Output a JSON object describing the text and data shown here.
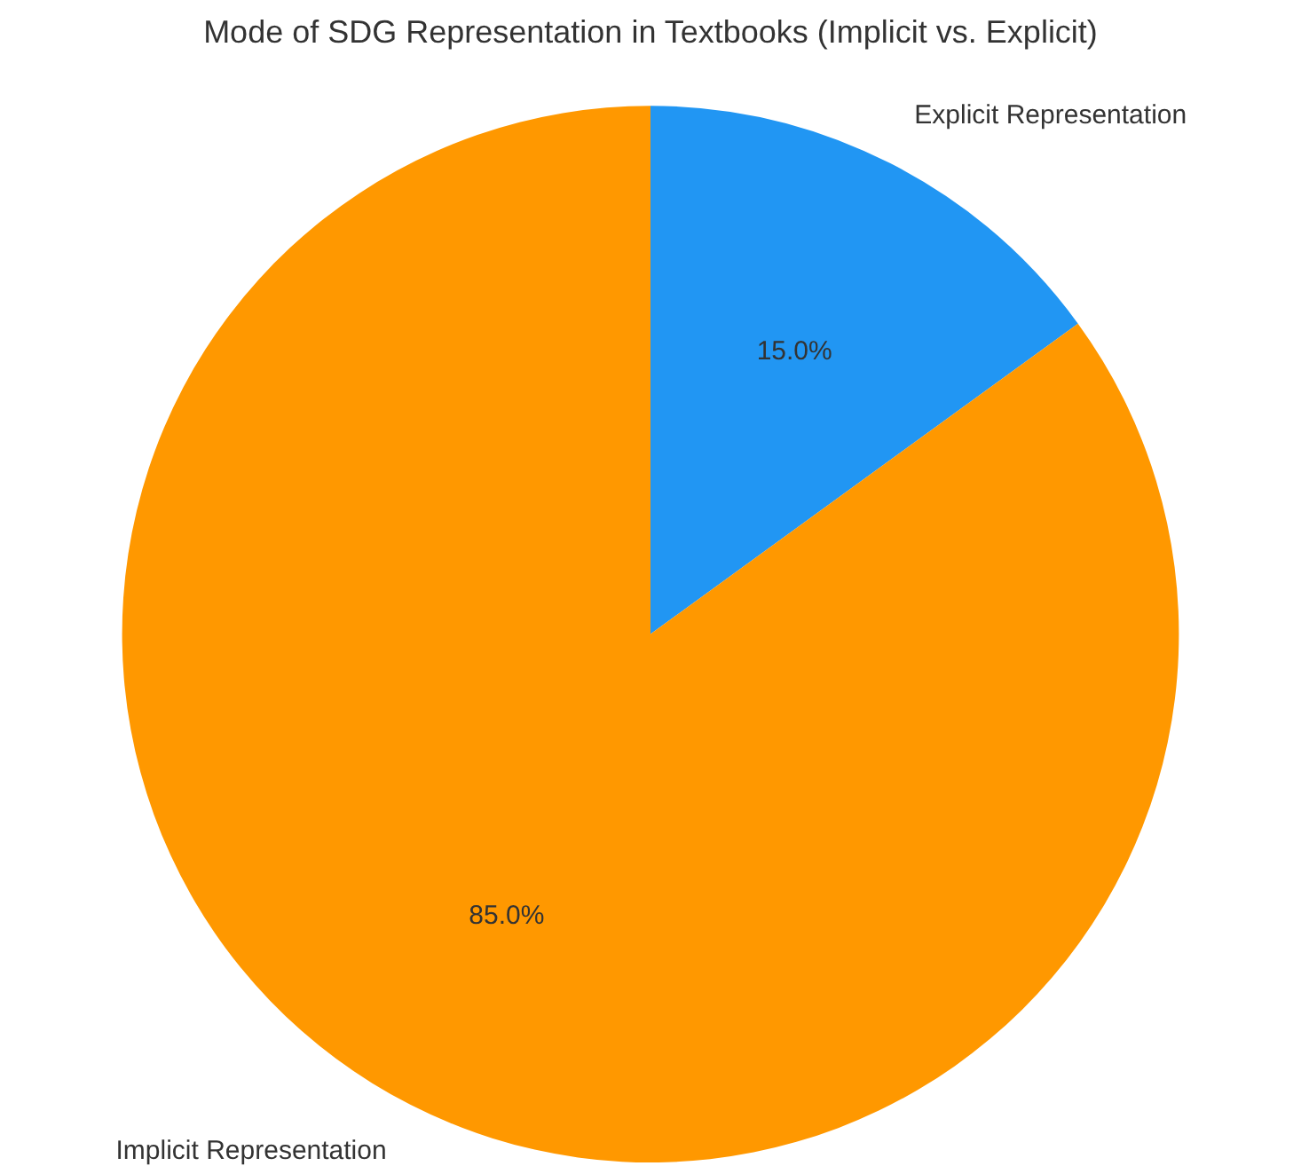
{
  "chart_data": {
    "type": "pie",
    "title": "Mode of SDG Representation in Textbooks (Implicit vs. Explicit)",
    "categories": [
      "Explicit Representation",
      "Implicit Representation"
    ],
    "values": [
      15,
      85
    ],
    "colors": [
      "#2196f3",
      "#ff9800"
    ],
    "value_labels": [
      "15.0%",
      "85.0%"
    ],
    "legend": false
  }
}
